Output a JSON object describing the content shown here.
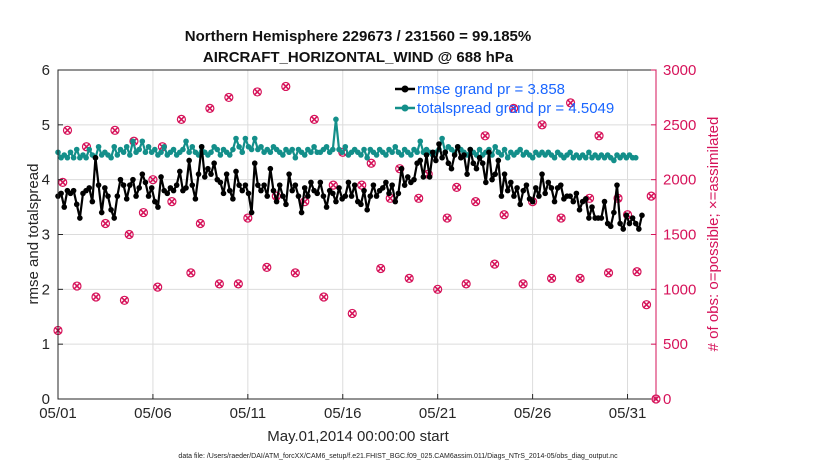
{
  "chart_data": {
    "type": "line",
    "title_line1": "Northern Hemisphere 229673 / 231560 = 99.185%",
    "title_line2": "AIRCRAFT_HORIZONTAL_WIND @ 688 hPa",
    "xlabel": "May.01,2014 00:00:00 start",
    "ylabel": "rmse and totalspread",
    "ylabel_right": "# of obs: o=possible; ×=assimilated",
    "footnote": "data file: /Users/raeder/DAI/ATM_forcXX/CAM6_setup/f.e21.FHIST_BGC.f09_025.CAM6assim.011/Diags_NTrS_2014-05/obs_diag_output.nc",
    "xlim": [
      0,
      31.5
    ],
    "ylim": [
      0,
      6
    ],
    "ylim_right": [
      0,
      3000
    ],
    "x_ticks": [
      {
        "x": 0,
        "label": "05/01"
      },
      {
        "x": 5,
        "label": "05/06"
      },
      {
        "x": 10,
        "label": "05/11"
      },
      {
        "x": 15,
        "label": "05/16"
      },
      {
        "x": 20,
        "label": "05/21"
      },
      {
        "x": 25,
        "label": "05/26"
      },
      {
        "x": 30,
        "label": "05/31"
      }
    ],
    "y_ticks": [
      "0",
      "1",
      "2",
      "3",
      "4",
      "5",
      "6"
    ],
    "y_ticks_right": [
      "0",
      "500",
      "1000",
      "1500",
      "2000",
      "2500",
      "3000"
    ],
    "grid": true,
    "series": [
      {
        "name": "rmse",
        "legend": "rmse grand pr = 3.858",
        "color": "#000000",
        "axis": "left",
        "values": [
          3.7,
          3.75,
          3.5,
          3.8,
          3.75,
          3.8,
          3.55,
          3.3,
          3.75,
          3.8,
          3.85,
          3.6,
          4.4,
          3.9,
          3.4,
          3.85,
          3.7,
          3.45,
          3.3,
          3.7,
          4.0,
          3.9,
          3.65,
          3.9,
          4.0,
          3.7,
          3.85,
          4.1,
          3.95,
          3.7,
          3.85,
          3.6,
          3.5,
          4.05,
          3.8,
          3.75,
          3.85,
          3.8,
          3.9,
          4.15,
          3.8,
          3.85,
          4.35,
          3.9,
          3.65,
          4.1,
          4.6,
          4.05,
          4.2,
          4.1,
          4.3,
          4.0,
          3.95,
          3.75,
          4.1,
          3.8,
          3.65,
          4.15,
          3.9,
          3.8,
          3.9,
          3.75,
          3.4,
          4.3,
          3.9,
          3.8,
          3.9,
          3.7,
          4.2,
          3.8,
          3.6,
          3.9,
          3.7,
          3.55,
          4.1,
          3.8,
          3.9,
          3.7,
          3.4,
          3.85,
          3.7,
          3.95,
          3.8,
          3.75,
          3.95,
          3.7,
          3.5,
          3.8,
          3.75,
          3.6,
          3.85,
          3.65,
          3.7,
          3.95,
          3.7,
          3.9,
          3.6,
          3.55,
          3.8,
          3.45,
          3.7,
          3.9,
          3.7,
          3.8,
          3.85,
          3.95,
          3.75,
          3.9,
          3.6,
          3.75,
          4.2,
          3.9,
          4.05,
          3.95,
          4.0,
          4.3,
          4.35,
          4.05,
          4.45,
          4.05,
          4.5,
          4.35,
          4.65,
          4.4,
          4.5,
          4.3,
          4.2,
          4.45,
          4.6,
          4.4,
          4.45,
          4.1,
          4.55,
          4.3,
          4.2,
          4.4,
          4.3,
          3.95,
          4.5,
          4.0,
          4.1,
          4.35,
          3.7,
          4.1,
          3.8,
          3.95,
          3.7,
          3.85,
          3.55,
          3.8,
          3.9,
          3.65,
          3.6,
          3.85,
          3.7,
          4.1,
          3.75,
          3.95,
          3.85,
          3.6,
          3.85,
          3.9,
          3.65,
          3.7,
          3.7,
          3.6,
          3.75,
          3.45,
          3.6,
          3.65,
          3.3,
          3.5,
          3.3,
          3.3,
          3.3,
          3.6,
          3.2,
          3.15,
          3.4,
          3.9,
          3.2,
          3.1,
          3.35,
          3.2,
          3.3,
          3.2,
          3.1,
          3.35
        ],
        "x_start": 0.0,
        "x_step": 0.1645
      },
      {
        "name": "totalspread",
        "legend": "totalspread grand pr = 4.5049",
        "color": "#138f8a",
        "axis": "left",
        "values": [
          4.5,
          4.4,
          4.45,
          4.4,
          4.5,
          4.4,
          4.55,
          4.4,
          4.45,
          4.4,
          4.55,
          4.45,
          4.4,
          4.6,
          4.45,
          4.5,
          4.45,
          4.4,
          4.6,
          4.45,
          4.55,
          4.5,
          4.6,
          4.45,
          4.7,
          4.5,
          4.55,
          4.7,
          4.5,
          4.6,
          4.5,
          4.55,
          4.45,
          4.5,
          4.6,
          4.45,
          4.5,
          4.55,
          4.45,
          4.5,
          4.55,
          4.7,
          4.5,
          4.6,
          4.5,
          4.45,
          4.6,
          4.5,
          4.45,
          4.5,
          4.6,
          4.55,
          4.45,
          4.55,
          4.5,
          4.45,
          4.55,
          4.75,
          4.6,
          4.5,
          4.75,
          4.6,
          4.55,
          4.75,
          4.55,
          4.6,
          4.5,
          4.55,
          4.5,
          4.6,
          4.55,
          4.5,
          4.45,
          4.55,
          4.5,
          4.55,
          4.4,
          4.55,
          4.5,
          4.45,
          4.55,
          4.5,
          4.6,
          4.5,
          4.5,
          4.55,
          4.6,
          4.5,
          4.55,
          5.1,
          4.55,
          4.5,
          4.6,
          4.45,
          4.5,
          4.55,
          4.5,
          4.45,
          4.55,
          4.4,
          4.55,
          4.5,
          4.45,
          4.55,
          4.5,
          4.45,
          4.55,
          4.5,
          4.6,
          4.5,
          4.45,
          4.55,
          4.5,
          4.45,
          4.55,
          4.5,
          4.7,
          4.5,
          4.55,
          4.5,
          4.45,
          4.5,
          4.55,
          4.75,
          4.5,
          4.6,
          4.55,
          4.5,
          4.6,
          4.55,
          4.5,
          4.45,
          4.55,
          4.5,
          4.45,
          4.55,
          4.45,
          4.5,
          4.55,
          4.45,
          4.6,
          4.5,
          4.45,
          4.55,
          4.4,
          4.5,
          4.45,
          4.5,
          4.55,
          4.45,
          4.5,
          4.45,
          4.4,
          4.5,
          4.45,
          4.5,
          4.45,
          4.5,
          4.45,
          4.4,
          4.5,
          4.45,
          4.4,
          4.45,
          4.5,
          4.4,
          4.45,
          4.4,
          4.45,
          4.4,
          4.5,
          4.4,
          4.45,
          4.4,
          4.45,
          4.4,
          4.45,
          4.4,
          4.35,
          4.45,
          4.4,
          4.45,
          4.4,
          4.45,
          4.4,
          4.4
        ],
        "x_start": 0.0,
        "x_step": 0.1645
      },
      {
        "name": "obs possible",
        "color": "#d6135a",
        "axis": "right",
        "marker": "o",
        "points": [
          [
            0.0,
            625
          ],
          [
            0.25,
            1975
          ],
          [
            0.5,
            2450
          ],
          [
            1.0,
            1030
          ],
          [
            1.5,
            2300
          ],
          [
            2.0,
            930
          ],
          [
            2.5,
            1600
          ],
          [
            3.0,
            2450
          ],
          [
            3.5,
            900
          ],
          [
            3.75,
            1500
          ],
          [
            4.0,
            2350
          ],
          [
            4.5,
            1700
          ],
          [
            5.0,
            2000
          ],
          [
            5.25,
            1020
          ],
          [
            5.5,
            2300
          ],
          [
            6.0,
            1800
          ],
          [
            6.5,
            2550
          ],
          [
            7.0,
            1150
          ],
          [
            7.5,
            1600
          ],
          [
            8.0,
            2650
          ],
          [
            8.5,
            1050
          ],
          [
            9.0,
            2750
          ],
          [
            9.5,
            1050
          ],
          [
            10.0,
            1650
          ],
          [
            10.5,
            2800
          ],
          [
            11.0,
            1200
          ],
          [
            11.5,
            1850
          ],
          [
            12.0,
            2850
          ],
          [
            12.5,
            1150
          ],
          [
            13.0,
            1800
          ],
          [
            13.5,
            2550
          ],
          [
            14.0,
            930
          ],
          [
            14.5,
            1950
          ],
          [
            15.0,
            2250
          ],
          [
            15.5,
            780
          ],
          [
            16.0,
            1950
          ],
          [
            16.5,
            2150
          ],
          [
            17.0,
            1190
          ],
          [
            17.5,
            1830
          ],
          [
            18.0,
            2100
          ],
          [
            18.5,
            1100
          ],
          [
            19.0,
            1830
          ],
          [
            19.5,
            2050
          ],
          [
            20.0,
            1000
          ],
          [
            20.5,
            1650
          ],
          [
            21.0,
            1930
          ],
          [
            21.5,
            1050
          ],
          [
            22.0,
            1800
          ],
          [
            22.5,
            2400
          ],
          [
            23.0,
            1230
          ],
          [
            23.5,
            1680
          ],
          [
            24.0,
            2650
          ],
          [
            24.5,
            1050
          ],
          [
            25.0,
            1800
          ],
          [
            25.5,
            2500
          ],
          [
            26.0,
            1100
          ],
          [
            26.5,
            1650
          ],
          [
            27.0,
            2700
          ],
          [
            27.5,
            1100
          ],
          [
            28.0,
            1830
          ],
          [
            28.5,
            2400
          ],
          [
            29.0,
            1150
          ],
          [
            29.5,
            1830
          ],
          [
            30.0,
            1680
          ],
          [
            30.5,
            1160
          ],
          [
            31.0,
            860
          ],
          [
            31.25,
            1850
          ],
          [
            31.5,
            0
          ]
        ]
      },
      {
        "name": "obs assimilated",
        "color": "#d6135a",
        "axis": "right",
        "marker": "x",
        "points": [
          [
            0.0,
            625
          ],
          [
            0.25,
            1975
          ],
          [
            0.5,
            2450
          ],
          [
            1.0,
            1030
          ],
          [
            1.5,
            2300
          ],
          [
            2.0,
            930
          ],
          [
            2.5,
            1600
          ],
          [
            3.0,
            2450
          ],
          [
            3.5,
            900
          ],
          [
            3.75,
            1500
          ],
          [
            4.0,
            2350
          ],
          [
            4.5,
            1700
          ],
          [
            5.0,
            2000
          ],
          [
            5.25,
            1020
          ],
          [
            5.5,
            2300
          ],
          [
            6.0,
            1800
          ],
          [
            6.5,
            2550
          ],
          [
            7.0,
            1150
          ],
          [
            7.5,
            1600
          ],
          [
            8.0,
            2650
          ],
          [
            8.5,
            1050
          ],
          [
            9.0,
            2750
          ],
          [
            9.5,
            1050
          ],
          [
            10.0,
            1650
          ],
          [
            10.5,
            2800
          ],
          [
            11.0,
            1200
          ],
          [
            11.5,
            1850
          ],
          [
            12.0,
            2850
          ],
          [
            12.5,
            1150
          ],
          [
            13.0,
            1800
          ],
          [
            13.5,
            2550
          ],
          [
            14.0,
            930
          ],
          [
            14.5,
            1950
          ],
          [
            15.0,
            2250
          ],
          [
            15.5,
            780
          ],
          [
            16.0,
            1950
          ],
          [
            16.5,
            2150
          ],
          [
            17.0,
            1190
          ],
          [
            17.5,
            1830
          ],
          [
            18.0,
            2100
          ],
          [
            18.5,
            1100
          ],
          [
            19.0,
            1830
          ],
          [
            19.5,
            2050
          ],
          [
            20.0,
            1000
          ],
          [
            20.5,
            1650
          ],
          [
            21.0,
            1930
          ],
          [
            21.5,
            1050
          ],
          [
            22.0,
            1800
          ],
          [
            22.5,
            2400
          ],
          [
            23.0,
            1230
          ],
          [
            23.5,
            1680
          ],
          [
            24.0,
            2650
          ],
          [
            24.5,
            1050
          ],
          [
            25.0,
            1800
          ],
          [
            25.5,
            2500
          ],
          [
            26.0,
            1100
          ],
          [
            26.5,
            1650
          ],
          [
            27.0,
            2700
          ],
          [
            27.5,
            1100
          ],
          [
            28.0,
            1830
          ],
          [
            28.5,
            2400
          ],
          [
            29.0,
            1150
          ],
          [
            29.5,
            1830
          ],
          [
            30.0,
            1680
          ],
          [
            30.5,
            1160
          ],
          [
            31.0,
            860
          ],
          [
            31.25,
            1850
          ],
          [
            31.5,
            0
          ]
        ]
      }
    ],
    "legend_position": "top-right"
  }
}
